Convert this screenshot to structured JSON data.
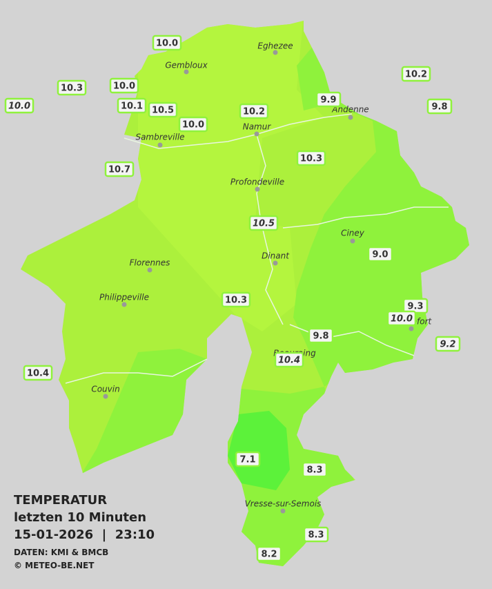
{
  "title": {
    "heading": "TEMPERATUR",
    "period": "letzten 10 Minuten",
    "timestamp": "15-01-2026  |  23:10",
    "source": "DATEN: KMI & BMCB",
    "copyright": "© METEO-BE.NET"
  },
  "places": [
    {
      "name": "Eghezee"
    },
    {
      "name": "Gembloux"
    },
    {
      "name": "Andenne"
    },
    {
      "name": "Namur"
    },
    {
      "name": "Sambreville"
    },
    {
      "name": "Profondeville"
    },
    {
      "name": "Ciney"
    },
    {
      "name": "Dinant"
    },
    {
      "name": "Florennes"
    },
    {
      "name": "Philippeville"
    },
    {
      "name": "Rochefort"
    },
    {
      "name": "Beauraing"
    },
    {
      "name": "Couvin"
    },
    {
      "name": "Vresse-sur-Semois"
    }
  ],
  "stations": [
    {
      "label": "10.0",
      "italic": false
    },
    {
      "label": "10.3",
      "italic": false
    },
    {
      "label": "10.0",
      "italic": true
    },
    {
      "label": "10.0",
      "italic": false
    },
    {
      "label": "10.1",
      "italic": false
    },
    {
      "label": "10.5",
      "italic": false
    },
    {
      "label": "10.0",
      "italic": false
    },
    {
      "label": "10.2",
      "italic": false
    },
    {
      "label": "9.9",
      "italic": false
    },
    {
      "label": "10.2",
      "italic": false
    },
    {
      "label": "9.8",
      "italic": false
    },
    {
      "label": "10.7",
      "italic": false
    },
    {
      "label": "10.3",
      "italic": false
    },
    {
      "label": "10.5",
      "italic": true
    },
    {
      "label": "9.0",
      "italic": false
    },
    {
      "label": "10.3",
      "italic": false
    },
    {
      "label": "9.3",
      "italic": false
    },
    {
      "label": "10.0",
      "italic": true
    },
    {
      "label": "9.8",
      "italic": false
    },
    {
      "label": "9.2",
      "italic": true
    },
    {
      "label": "10.4",
      "italic": true
    },
    {
      "label": "10.4",
      "italic": false
    },
    {
      "label": "7.1",
      "italic": false
    },
    {
      "label": "8.3",
      "italic": false
    },
    {
      "label": "8.3",
      "italic": false
    },
    {
      "label": "8.2",
      "italic": false
    }
  ]
}
